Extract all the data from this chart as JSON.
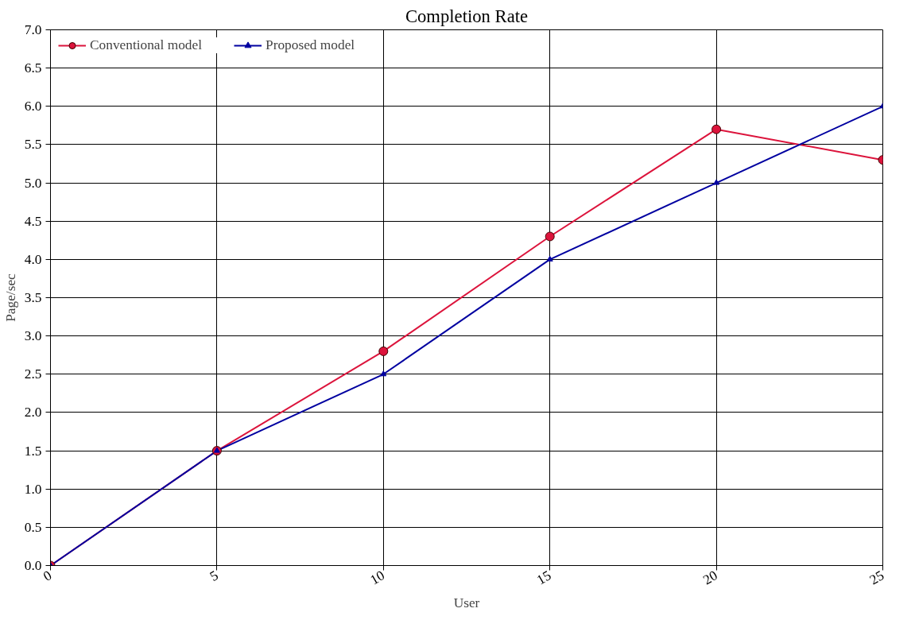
{
  "chart_data": {
    "type": "line",
    "title": "Completion Rate",
    "xlabel": "User",
    "ylabel": "Page/sec",
    "x": [
      0,
      5,
      10,
      15,
      20,
      25
    ],
    "series": [
      {
        "name": "Conventional model",
        "color": "#dc143c",
        "marker": "circle",
        "values": [
          0,
          1.5,
          2.8,
          4.3,
          5.7,
          5.3
        ]
      },
      {
        "name": "Proposed model",
        "color": "#0000a0",
        "marker": "triangle",
        "values": [
          0,
          1.5,
          2.5,
          4.0,
          5.0,
          6.0
        ]
      }
    ],
    "xlim": [
      0,
      25
    ],
    "xticks": [
      0,
      5,
      10,
      15,
      20,
      25
    ],
    "ylim": [
      0,
      7
    ],
    "yticks": [
      {
        "value": 0,
        "label": "0.0"
      },
      0.5,
      {
        "value": 1,
        "label": "1.0"
      },
      1.5,
      {
        "value": 2,
        "label": "2.0"
      },
      2.5,
      {
        "value": 3,
        "label": "3.0"
      },
      3.5,
      {
        "value": 4,
        "label": "4.0"
      },
      4.5,
      {
        "value": 5,
        "label": "5.0"
      },
      5.5,
      {
        "value": 6,
        "label": "6.0"
      },
      6.5,
      {
        "value": 7,
        "label": "7.0"
      }
    ],
    "grid": true,
    "legend": "top left",
    "line_style": "solid"
  }
}
